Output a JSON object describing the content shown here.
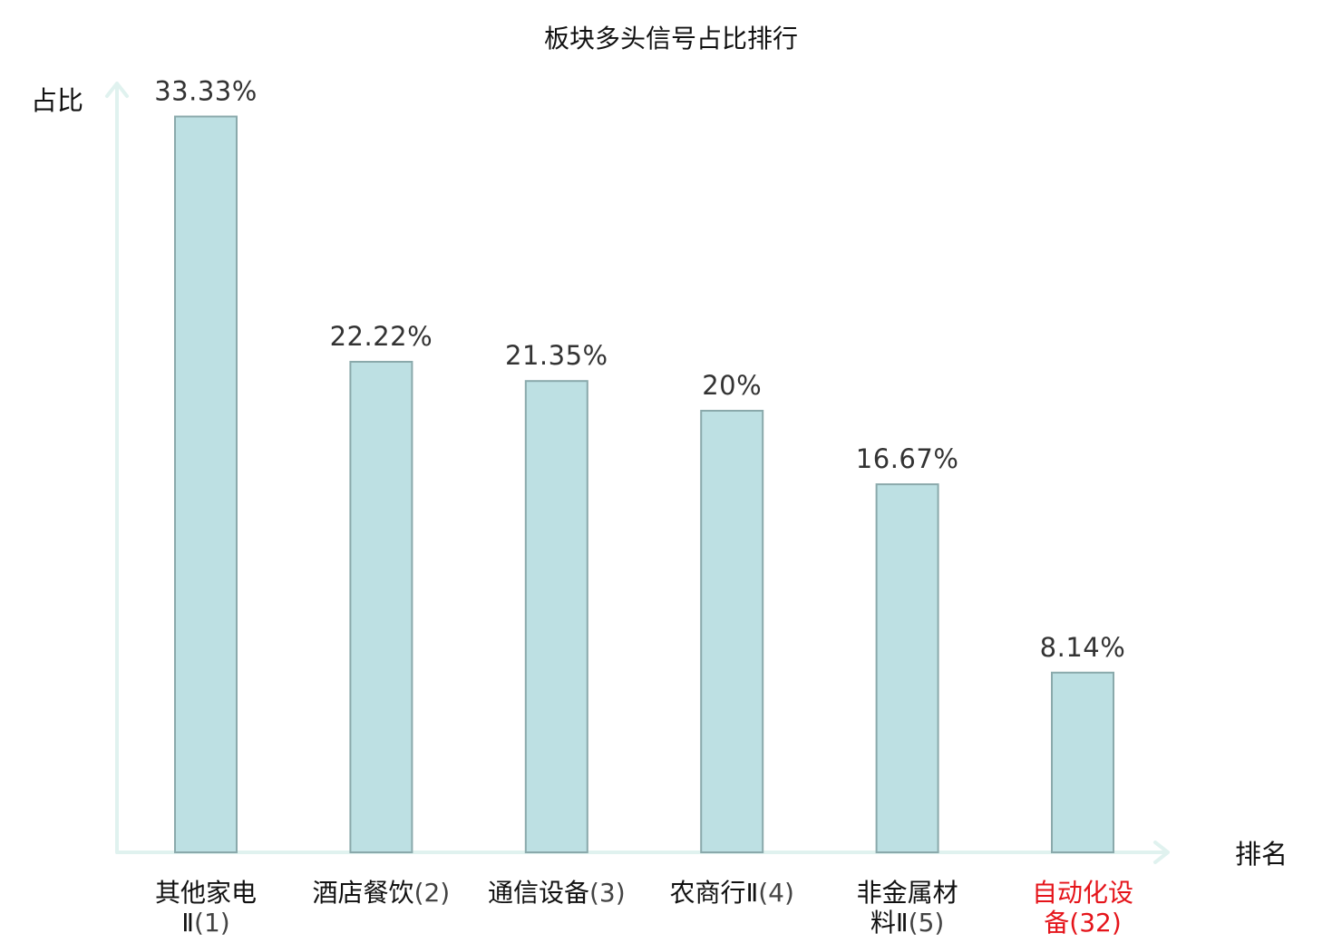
{
  "chart_data": {
    "type": "bar",
    "title": "板块多头信号占比排行",
    "xlabel": "排名",
    "ylabel": "占比",
    "ylim": [
      0,
      34.5
    ],
    "grid": false,
    "legend": "none",
    "categories": [
      {
        "name_lines": [
          "其他家电",
          "Ⅱ"
        ],
        "rank": "(1)",
        "highlight": false
      },
      {
        "name_lines": [
          "酒店餐饮"
        ],
        "rank": "(2)",
        "highlight": false
      },
      {
        "name_lines": [
          "通信设备"
        ],
        "rank": "(3)",
        "highlight": false
      },
      {
        "name_lines": [
          "农商行Ⅱ"
        ],
        "rank": "(4)",
        "highlight": false
      },
      {
        "name_lines": [
          "非金属材",
          "料Ⅱ"
        ],
        "rank": "(5)",
        "highlight": false
      },
      {
        "name_lines": [
          "自动化设",
          "备"
        ],
        "rank": "(32)",
        "highlight": true
      }
    ],
    "values": [
      33.33,
      22.22,
      21.35,
      20,
      16.67,
      8.14
    ],
    "value_labels": [
      "33.33%",
      "22.22%",
      "21.35%",
      "20%",
      "16.67%",
      "8.14%"
    ],
    "colors": {
      "bar_fill": "#bde0e3",
      "bar_stroke": "#8aa9ab",
      "axis": "#e0f2ef",
      "highlight": "#e5141a"
    }
  }
}
